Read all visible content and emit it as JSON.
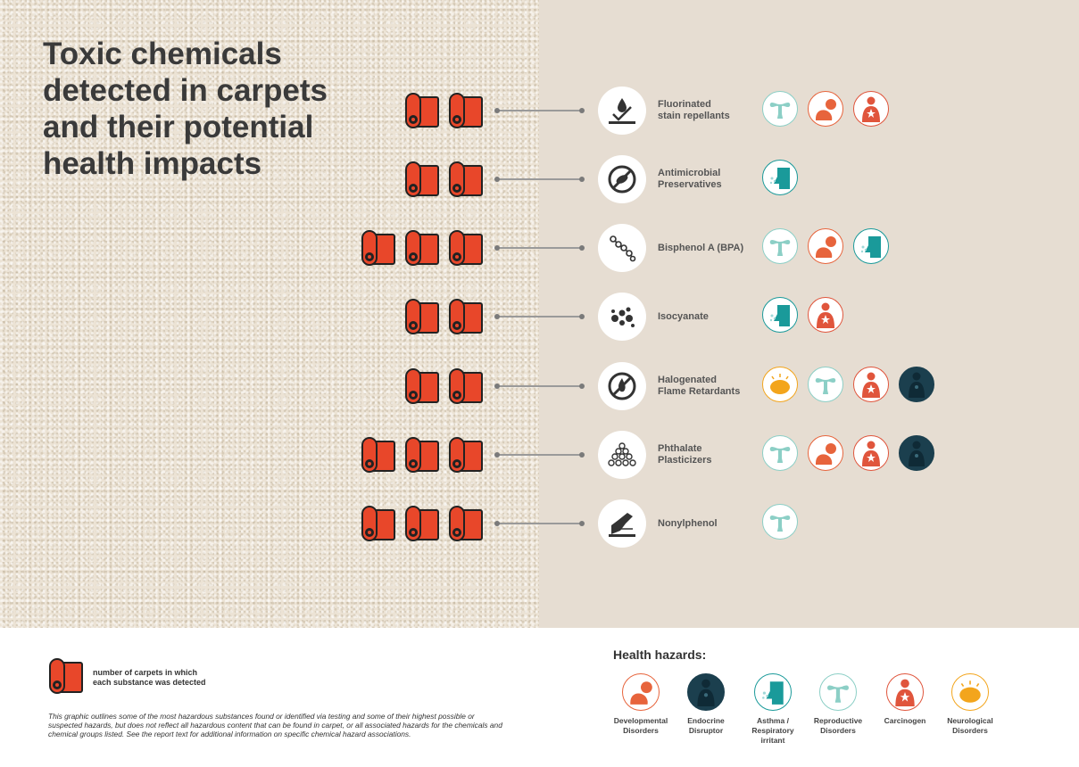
{
  "title_lines": [
    "Toxic chemicals",
    "detected in carpets",
    "and their potential",
    "health impacts"
  ],
  "colors": {
    "roll_red": "#e8472a",
    "developmental": "#e7643c",
    "endocrine": "#1b3f4e",
    "asthma": "#1a9a9a",
    "reproductive": "#8ccfc6",
    "carcinogen": "#e0553c",
    "neurological": "#f3a51c"
  },
  "chemicals": [
    {
      "label_lines": [
        "Fluorinated",
        "stain repellants"
      ],
      "icon": "stain-repellent-icon",
      "carpets": 2,
      "hazards": [
        "reproductive",
        "developmental",
        "carcinogen"
      ]
    },
    {
      "label_lines": [
        "Antimicrobial",
        "Preservatives"
      ],
      "icon": "antimicrobial-icon",
      "carpets": 2,
      "hazards": [
        "asthma"
      ]
    },
    {
      "label_lines": [
        "Bisphenol A (BPA)"
      ],
      "icon": "molecule-chain-icon",
      "carpets": 3,
      "hazards": [
        "reproductive",
        "developmental",
        "asthma"
      ]
    },
    {
      "label_lines": [
        "Isocyanate"
      ],
      "icon": "particles-icon",
      "carpets": 2,
      "hazards": [
        "asthma",
        "carcinogen"
      ]
    },
    {
      "label_lines": [
        "Halogenated",
        "Flame Retardants"
      ],
      "icon": "no-flame-icon",
      "carpets": 2,
      "hazards": [
        "neurological",
        "reproductive",
        "carcinogen",
        "endocrine"
      ]
    },
    {
      "label_lines": [
        "Phthalate",
        "Plasticizers"
      ],
      "icon": "beads-pile-icon",
      "carpets": 3,
      "hazards": [
        "reproductive",
        "developmental",
        "carcinogen",
        "endocrine"
      ]
    },
    {
      "label_lines": [
        "Nonylphenol"
      ],
      "icon": "detergent-icon",
      "carpets": 3,
      "hazards": [
        "reproductive"
      ]
    }
  ],
  "legend": {
    "roll_text_lines": [
      "number of carpets in which",
      "each substance was detected"
    ],
    "note": "This graphic outlines some of the most hazardous substances found or identified via testing  and some of their highest possible or suspected hazards, but does not reflect all hazardous content that can be found in carpet, or all associated hazards for the chemicals and chemical groups listed. See the report text for additional information on specific chemical hazard associations.",
    "hazards_title": "Health hazards:",
    "hazards": [
      {
        "key": "developmental",
        "label_lines": [
          "Developmental",
          "Disorders"
        ]
      },
      {
        "key": "endocrine",
        "label_lines": [
          "Endocrine",
          "Disruptor"
        ]
      },
      {
        "key": "asthma",
        "label_lines": [
          "Asthma /",
          "Respiratory",
          "irritant"
        ]
      },
      {
        "key": "reproductive",
        "label_lines": [
          "Reproductive",
          "Disorders"
        ]
      },
      {
        "key": "carcinogen",
        "label_lines": [
          "Carcinogen"
        ]
      },
      {
        "key": "neurological",
        "label_lines": [
          "Neurological",
          "Disorders"
        ]
      }
    ]
  }
}
